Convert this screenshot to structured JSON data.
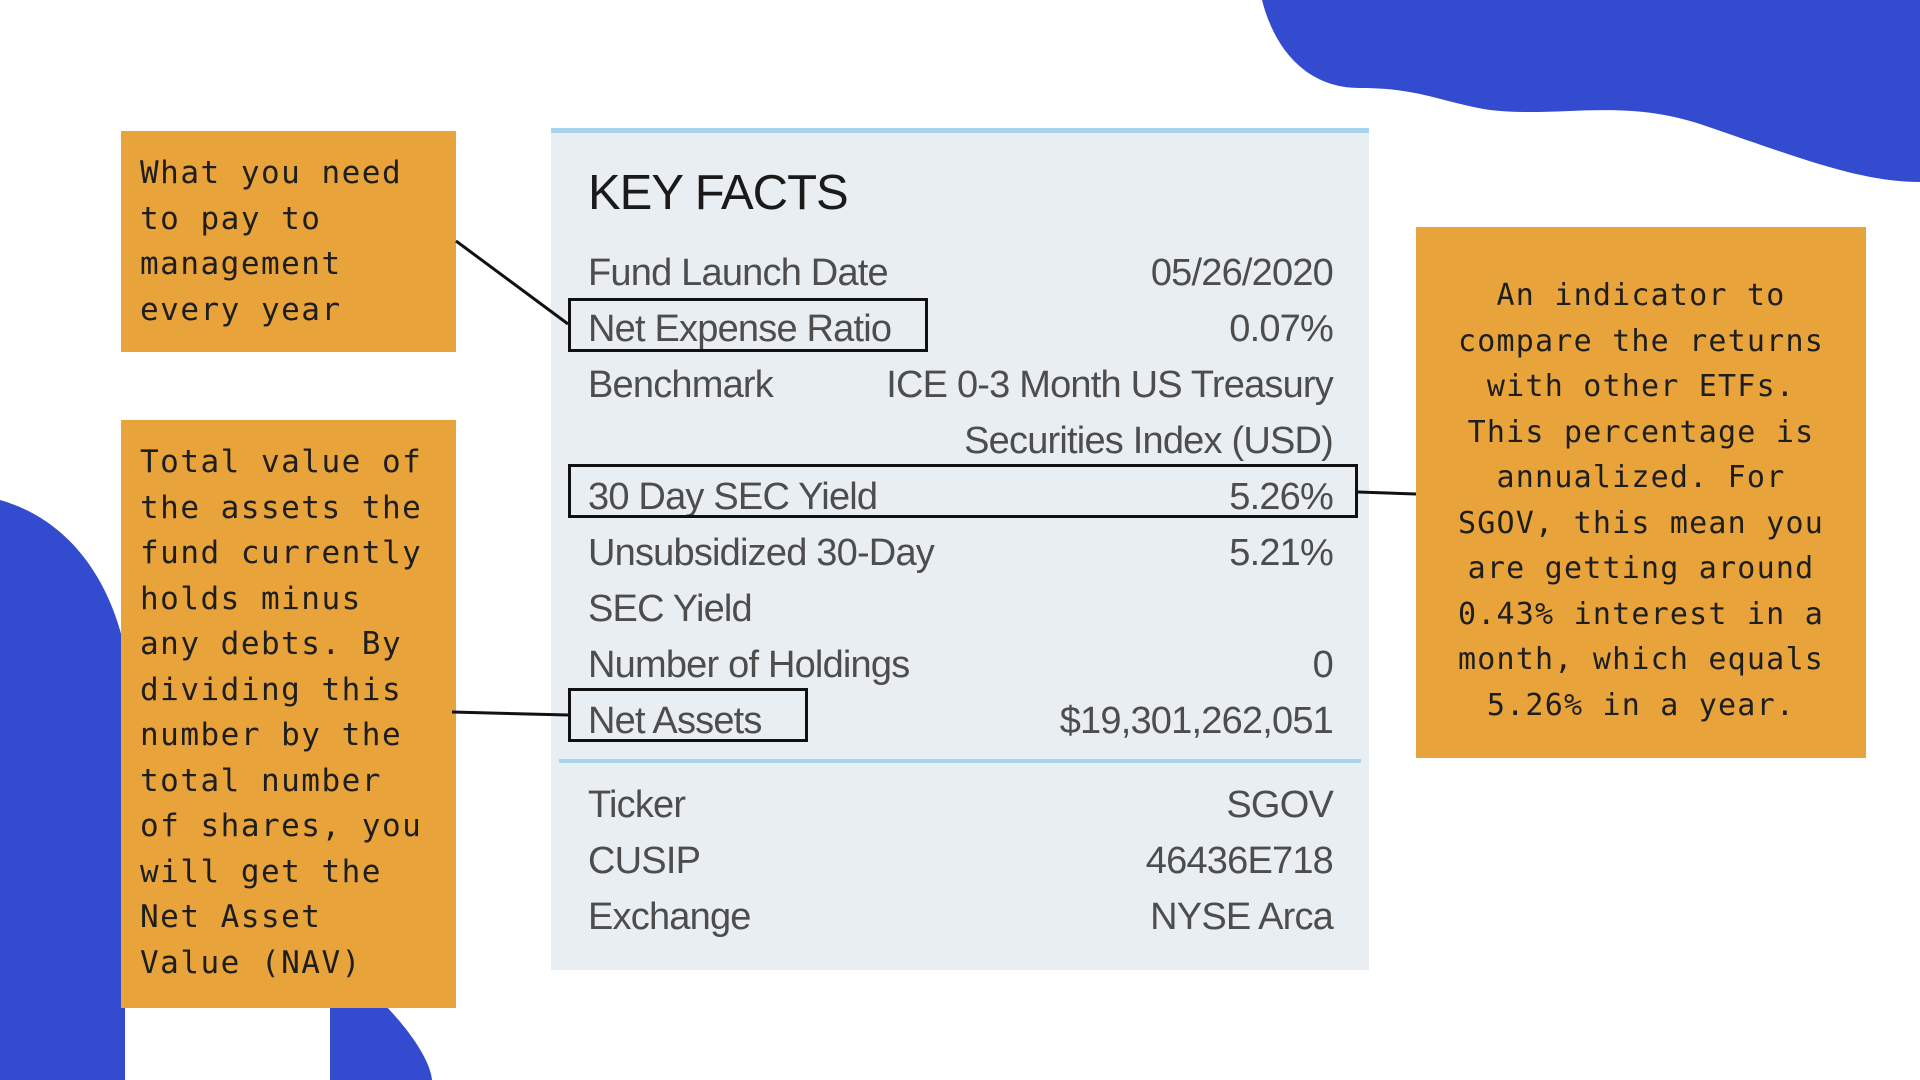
{
  "key_facts": {
    "title": "KEY FACTS",
    "rows": [
      {
        "label": "Fund Launch Date",
        "value": "05/26/2020"
      },
      {
        "label": "Net Expense Ratio",
        "value": "0.07%"
      },
      {
        "label": "Benchmark",
        "value": "ICE 0-3 Month US Treasury",
        "value_cont": "Securities Index (USD)"
      },
      {
        "label": "30 Day SEC Yield",
        "value": "5.26%"
      },
      {
        "label": "Unsubsidized 30-Day",
        "label_cont": "SEC Yield",
        "value": "5.21%"
      },
      {
        "label": "Number of Holdings",
        "value": "0"
      },
      {
        "label": "Net Assets",
        "value": "$19,301,262,051"
      }
    ],
    "id_rows": [
      {
        "label": "Ticker",
        "value": "SGOV"
      },
      {
        "label": "CUSIP",
        "value": "46436E718"
      },
      {
        "label": "Exchange",
        "value": "NYSE Arca"
      }
    ]
  },
  "notes": {
    "expense": [
      "What you need",
      "to pay to",
      "management",
      "every year"
    ],
    "net_assets": [
      "Total value of",
      "the assets the",
      "fund currently",
      "holds minus",
      "any debts. By",
      "dividing this",
      "number by the",
      "total number",
      "of shares, you",
      "will get the",
      "Net Asset",
      "Value (NAV)"
    ],
    "yield": [
      "An indicator to",
      "compare the returns",
      "with other ETFs.",
      "This percentage is",
      "annualized. For",
      "SGOV, this mean you",
      "are getting around",
      "0.43% interest in a",
      "month, which equals",
      "5.26% in a year."
    ]
  },
  "colors": {
    "blob": "#334bcf",
    "note_background": "#e8a33a",
    "card_background": "#e8eef2",
    "card_accent": "#a8d4ee"
  }
}
